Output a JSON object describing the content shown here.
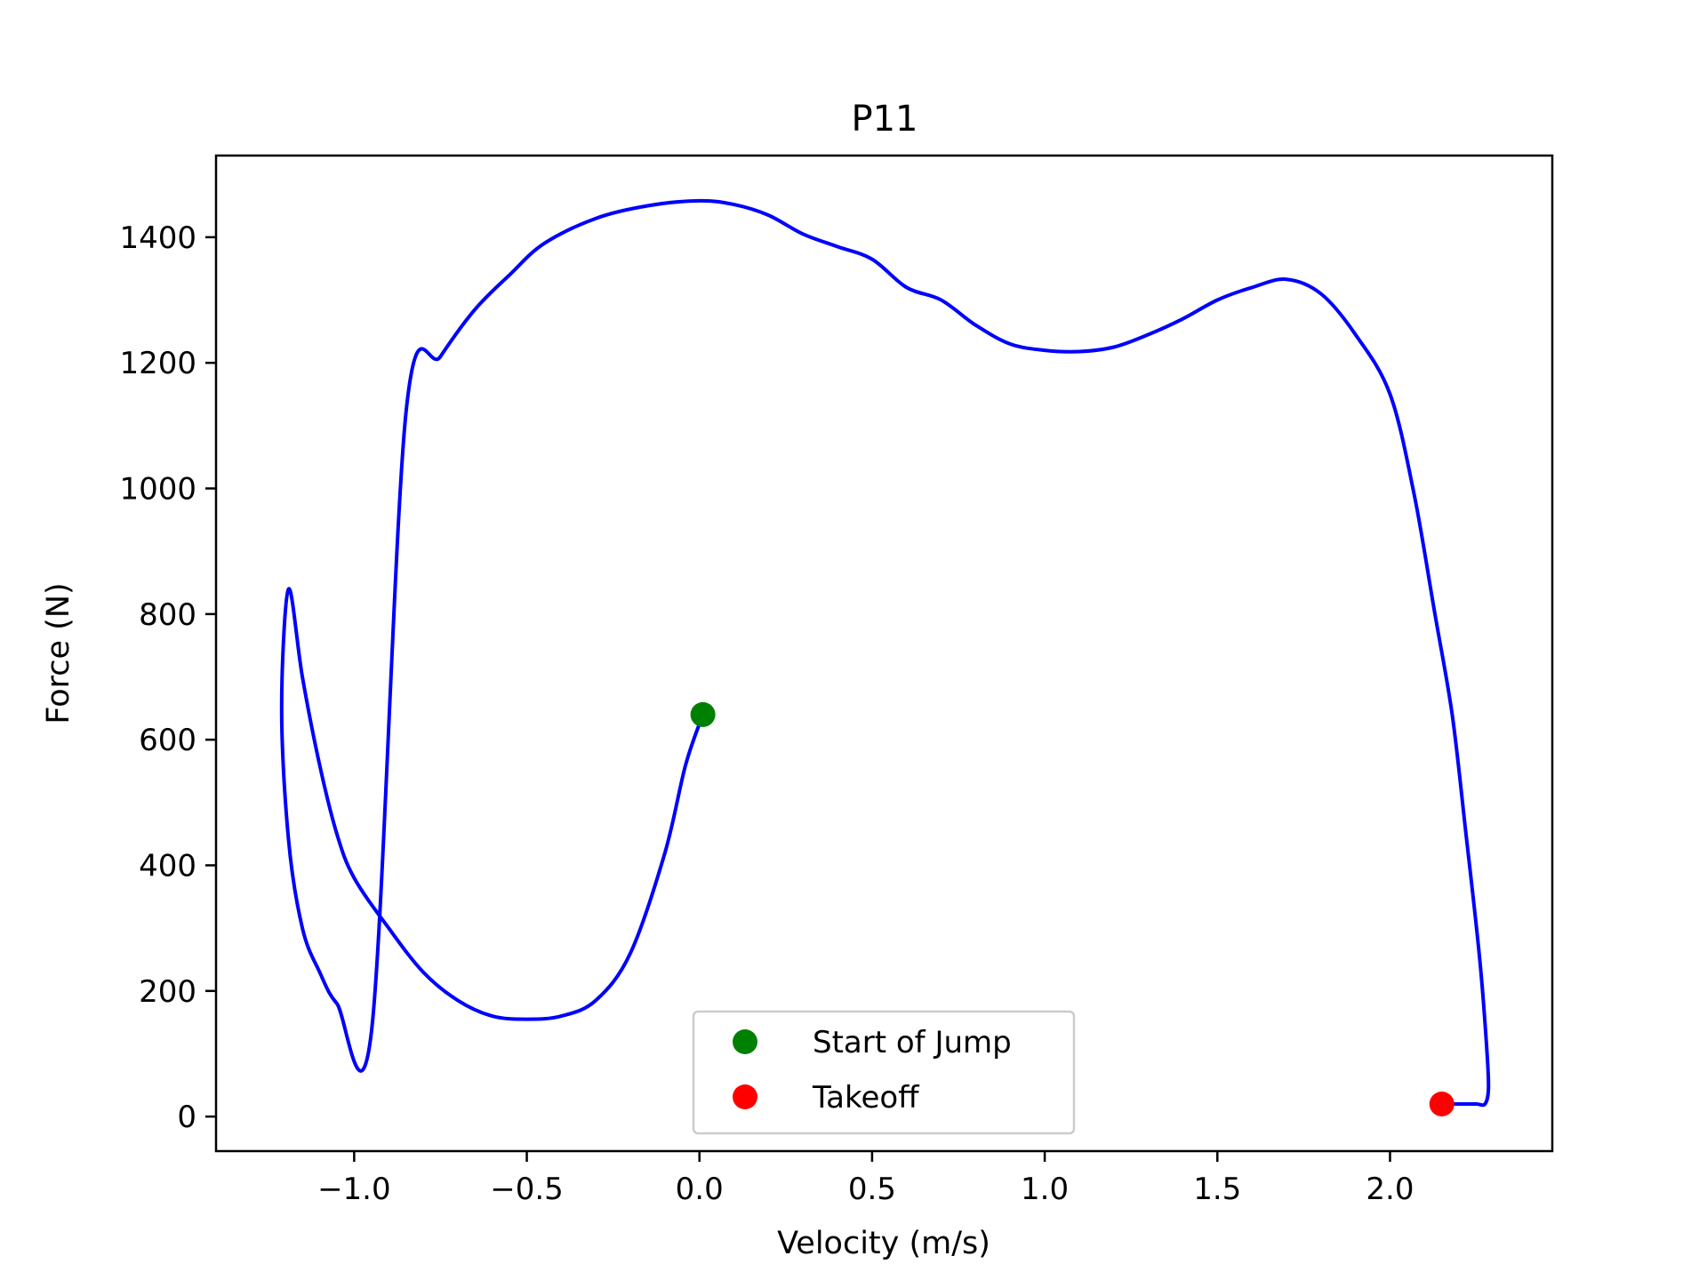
{
  "chart_data": {
    "type": "line",
    "title": "P11",
    "xlabel": "Velocity (m/s)",
    "ylabel": "Force (N)",
    "xlim": [
      -1.4,
      2.47
    ],
    "ylim": [
      -55,
      1530
    ],
    "grid": false,
    "legend_position": "lower center",
    "x_ticks": [
      -1.0,
      -0.5,
      0.0,
      0.5,
      1.0,
      1.5,
      2.0
    ],
    "x_tick_labels": [
      "−1.0",
      "−0.5",
      "0.0",
      "0.5",
      "1.0",
      "1.5",
      "2.0"
    ],
    "y_ticks": [
      0,
      200,
      400,
      600,
      800,
      1000,
      1200,
      1400
    ],
    "y_tick_labels": [
      "0",
      "200",
      "400",
      "600",
      "800",
      "1000",
      "1200",
      "1400"
    ],
    "series": [
      {
        "color": "#0000ff",
        "x": [
          0.01,
          -0.04,
          -0.1,
          -0.2,
          -0.3,
          -0.4,
          -0.5,
          -0.6,
          -0.7,
          -0.8,
          -0.9,
          -1.0,
          -1.05,
          -1.1,
          -1.15,
          -1.19,
          -1.21,
          -1.19,
          -1.15,
          -1.1,
          -1.05,
          -0.95,
          -0.85,
          -0.75,
          -0.65,
          -0.55,
          -0.45,
          -0.3,
          -0.15,
          0.0,
          0.1,
          0.2,
          0.3,
          0.4,
          0.5,
          0.6,
          0.7,
          0.8,
          0.9,
          1.0,
          1.1,
          1.2,
          1.3,
          1.4,
          1.5,
          1.6,
          1.7,
          1.8,
          1.9,
          2.0,
          2.07,
          2.13,
          2.18,
          2.22,
          2.26,
          2.28,
          2.285,
          2.275,
          2.25,
          2.21,
          2.18,
          2.15
        ],
        "y": [
          640,
          560,
          420,
          260,
          185,
          160,
          155,
          160,
          185,
          230,
          300,
          380,
          450,
          560,
          700,
          840,
          650,
          440,
          300,
          230,
          180,
          135,
          1120,
          1210,
          1285,
          1340,
          1390,
          1430,
          1450,
          1458,
          1452,
          1435,
          1405,
          1385,
          1365,
          1320,
          1300,
          1260,
          1230,
          1220,
          1218,
          1225,
          1245,
          1270,
          1300,
          1320,
          1333,
          1310,
          1245,
          1150,
          990,
          800,
          640,
          450,
          250,
          110,
          45,
          20,
          20,
          20,
          20,
          20
        ]
      }
    ],
    "markers": [
      {
        "name": "Start of Jump",
        "x": 0.01,
        "y": 640,
        "color": "#008000"
      },
      {
        "name": "Takeoff",
        "x": 2.15,
        "y": 20,
        "color": "#ff0000"
      }
    ]
  }
}
